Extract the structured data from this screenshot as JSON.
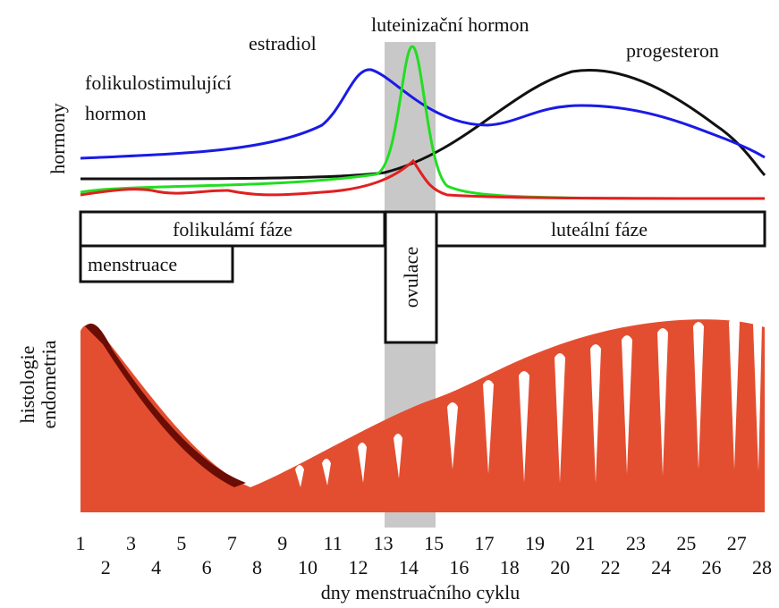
{
  "hormones": {
    "axis_label": "hormony",
    "fsh": [
      "folikulostimulující",
      "hormon"
    ],
    "estradiol": "estradiol",
    "lh": "luteinizační hormon",
    "progesteron": "progesteron"
  },
  "phases": {
    "follicular": "folikulámí fáze",
    "luteal": "luteální fáze",
    "menstruation": "menstruace",
    "ovulation": "ovulace"
  },
  "endometrium": {
    "axis_label": [
      "histologie",
      "endometria"
    ]
  },
  "days": {
    "labels": [
      1,
      2,
      3,
      4,
      5,
      6,
      7,
      8,
      9,
      10,
      11,
      12,
      13,
      14,
      15,
      16,
      17,
      18,
      19,
      20,
      21,
      22,
      23,
      24,
      25,
      26,
      27,
      28
    ],
    "title": "dny menstruačního cyklu"
  }
}
